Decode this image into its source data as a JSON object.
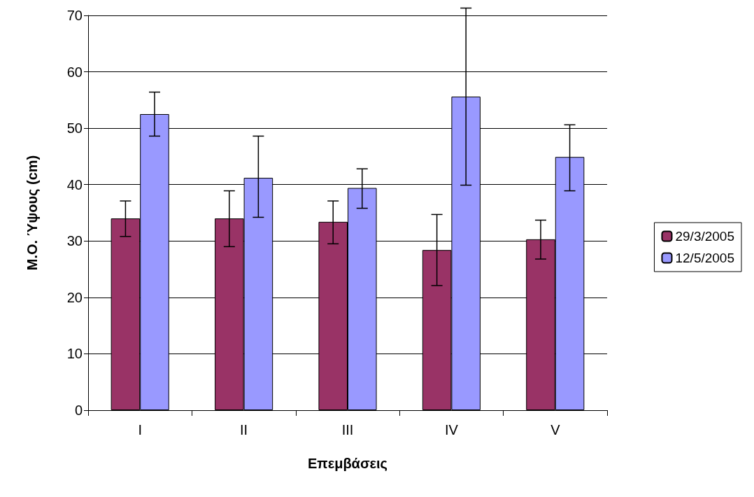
{
  "chart_data": {
    "type": "bar",
    "xlabel": "Επεμβάσεις",
    "ylabel": "Μ.Ο. Ύψους (cm)",
    "categories": [
      "I",
      "II",
      "III",
      "IV",
      "V"
    ],
    "series": [
      {
        "name": "29/3/2005",
        "color": "#993366",
        "values": [
          34,
          34,
          33.4,
          28.4,
          30.3
        ],
        "errors": [
          [
            30.8,
            37.1
          ],
          [
            29,
            38.9
          ],
          [
            29.5,
            37.1
          ],
          [
            22.1,
            34.7
          ],
          [
            26.8,
            33.7
          ]
        ]
      },
      {
        "name": "12/5/2005",
        "color": "#9999ff",
        "values": [
          52.5,
          41.2,
          39.4,
          55.6,
          44.9
        ],
        "errors": [
          [
            48.6,
            56.4
          ],
          [
            34.2,
            48.6
          ],
          [
            35.8,
            42.8
          ],
          [
            39.9,
            71.3
          ],
          [
            38.9,
            50.6
          ]
        ]
      }
    ],
    "ylim": [
      0,
      70
    ],
    "yticks": [
      0,
      10,
      20,
      30,
      40,
      50,
      60,
      70
    ],
    "grid": "y",
    "legend": "right"
  }
}
